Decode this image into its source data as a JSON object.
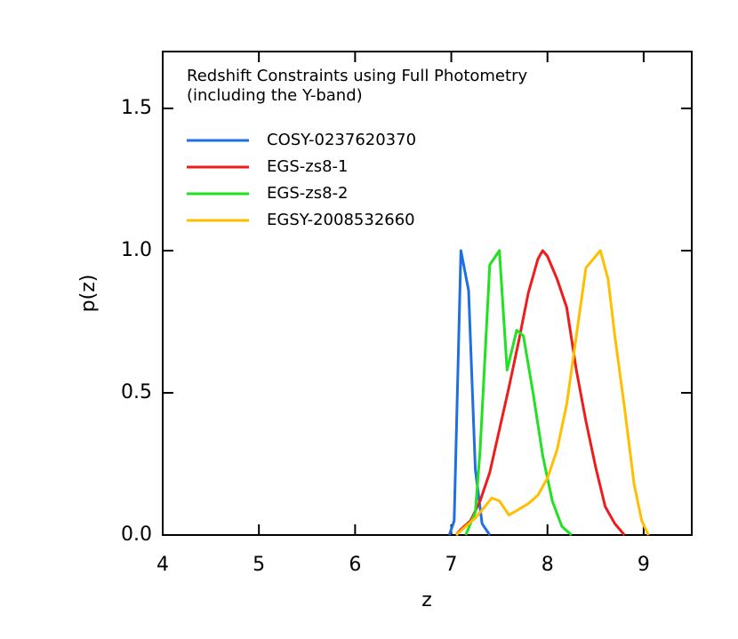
{
  "chart_data": {
    "type": "line",
    "annotations": [
      "Redshift Constraints using Full Photometry",
      "(including the Y-band)"
    ],
    "xlabel": "z",
    "ylabel": "p(z)",
    "xlim": [
      4,
      9.5
    ],
    "ylim": [
      0,
      1.7
    ],
    "xticks": [
      4,
      5,
      6,
      7,
      8,
      9
    ],
    "yticks": [
      {
        "value": 0,
        "label": "0.0"
      },
      0.5,
      {
        "value": 1,
        "label": "1.0"
      },
      1.5
    ],
    "legend": "upper left",
    "series": [
      {
        "name": "COSY-0237620370",
        "color": "#1f6fe0",
        "x": [
          6.98,
          7.03,
          7.1,
          7.18,
          7.25,
          7.32,
          7.4
        ],
        "values": [
          0,
          0.05,
          1.0,
          0.86,
          0.23,
          0.04,
          0
        ]
      },
      {
        "name": "EGS-zs8-1",
        "color": "#ee1c1c",
        "x": [
          7.05,
          7.1,
          7.2,
          7.3,
          7.4,
          7.5,
          7.6,
          7.7,
          7.8,
          7.9,
          7.95,
          8.0,
          8.1,
          8.2,
          8.3,
          8.4,
          8.5,
          8.6,
          8.7,
          8.8
        ],
        "values": [
          0,
          0.02,
          0.05,
          0.12,
          0.22,
          0.37,
          0.52,
          0.68,
          0.85,
          0.97,
          1.0,
          0.98,
          0.9,
          0.8,
          0.58,
          0.4,
          0.24,
          0.1,
          0.04,
          0
        ]
      },
      {
        "name": "EGS-zs8-2",
        "color": "#22e022",
        "x": [
          7.15,
          7.25,
          7.3,
          7.4,
          7.5,
          7.58,
          7.68,
          7.75,
          7.85,
          7.95,
          8.05,
          8.15,
          8.25
        ],
        "values": [
          0,
          0.08,
          0.3,
          0.95,
          1.0,
          0.58,
          0.72,
          0.7,
          0.5,
          0.28,
          0.12,
          0.03,
          0
        ]
      },
      {
        "name": "EGSY-2008532660",
        "color": "#ffbf00",
        "x": [
          7.05,
          7.15,
          7.25,
          7.35,
          7.42,
          7.5,
          7.6,
          7.7,
          7.8,
          7.9,
          8.0,
          8.1,
          8.2,
          8.3,
          8.4,
          8.55,
          8.63,
          8.7,
          8.8,
          8.9,
          8.98,
          9.05
        ],
        "values": [
          0,
          0.03,
          0.06,
          0.1,
          0.13,
          0.12,
          0.07,
          0.09,
          0.11,
          0.14,
          0.2,
          0.3,
          0.46,
          0.7,
          0.94,
          1.0,
          0.9,
          0.7,
          0.45,
          0.18,
          0.05,
          0
        ]
      }
    ]
  }
}
